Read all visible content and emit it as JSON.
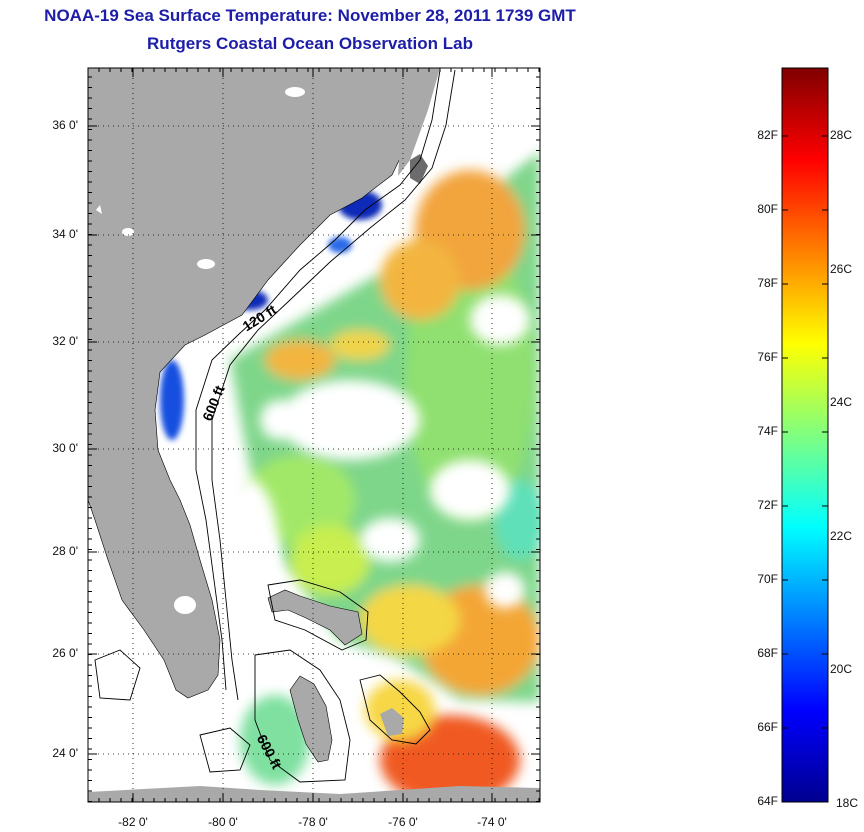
{
  "header": {
    "title": "NOAA-19 Sea Surface Temperature:  November 28, 2011 1739 GMT",
    "subtitle": "Rutgers Coastal Ocean Observation Lab"
  },
  "map": {
    "lat_labels": [
      "36 0'",
      "34 0'",
      "32 0'",
      "30 0'",
      "28 0'",
      "26 0'",
      "24 0'"
    ],
    "lon_labels": [
      "-82 0'",
      "-80 0'",
      "-78 0'",
      "-76 0'",
      "-74 0'"
    ],
    "contour_labels": [
      "120 ft",
      "600 ft",
      "600 ft"
    ],
    "land_color": "#a9a9a9",
    "cloud_color": "#ffffff"
  },
  "colorbar": {
    "fahrenheit_labels": [
      "82F",
      "80F",
      "78F",
      "76F",
      "74F",
      "72F",
      "70F",
      "68F",
      "66F",
      "64F"
    ],
    "celsius_labels": [
      "28C",
      "26C",
      "24C",
      "22C",
      "20C",
      "18C"
    ],
    "colormap": [
      "#00008f",
      "#0000ff",
      "#0080ff",
      "#00ffff",
      "#80ff80",
      "#ffff00",
      "#ff8000",
      "#ff0000",
      "#800000"
    ]
  }
}
